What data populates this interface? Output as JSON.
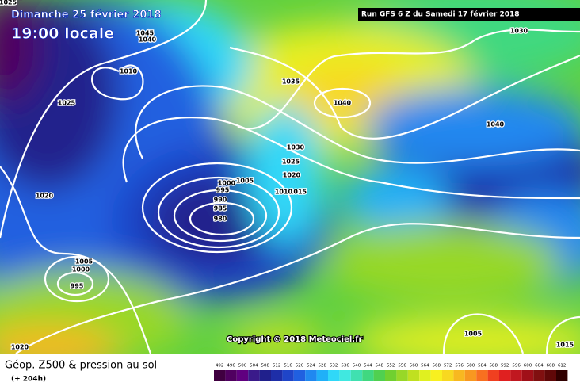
{
  "header": {
    "date": "Dimanche 25 février 2018",
    "time": "19:00 locale",
    "run": "Run GFS 6 Z du Samedi 17 février 2018"
  },
  "map": {
    "copyright": "Copyright © 2018 Meteociel.fr",
    "isobar_labels": [
      1025,
      1045,
      1040,
      1010,
      1025,
      1035,
      1040,
      1030,
      1040,
      1030,
      1025,
      1020,
      1015,
      1010,
      1005,
      1000,
      995,
      990,
      985,
      980,
      1020,
      1005,
      1000,
      995,
      1020,
      1005,
      1015
    ]
  },
  "footer": {
    "title": "Géop. Z500 & pression au sol",
    "lead": "(+ 204h)",
    "scale": [
      492,
      496,
      500,
      504,
      508,
      512,
      516,
      520,
      524,
      528,
      532,
      536,
      540,
      544,
      548,
      552,
      556,
      560,
      564,
      568,
      572,
      576,
      580,
      584,
      588,
      592,
      596,
      600,
      604,
      608,
      612
    ],
    "scale_colors": [
      "#400040",
      "#500060",
      "#600080",
      "#3a1a8a",
      "#20208c",
      "#1e2ea8",
      "#1f45c8",
      "#2060e0",
      "#2088f0",
      "#20b0f8",
      "#30d8f8",
      "#40e8e0",
      "#40e0b0",
      "#40d880",
      "#50d050",
      "#70d030",
      "#98d828",
      "#c0e020",
      "#e0f020",
      "#f8f020",
      "#f8d820",
      "#f8b820",
      "#f89820",
      "#f87020",
      "#f04020",
      "#e02020",
      "#c01820",
      "#a01018",
      "#801010",
      "#600808",
      "#300000"
    ]
  }
}
